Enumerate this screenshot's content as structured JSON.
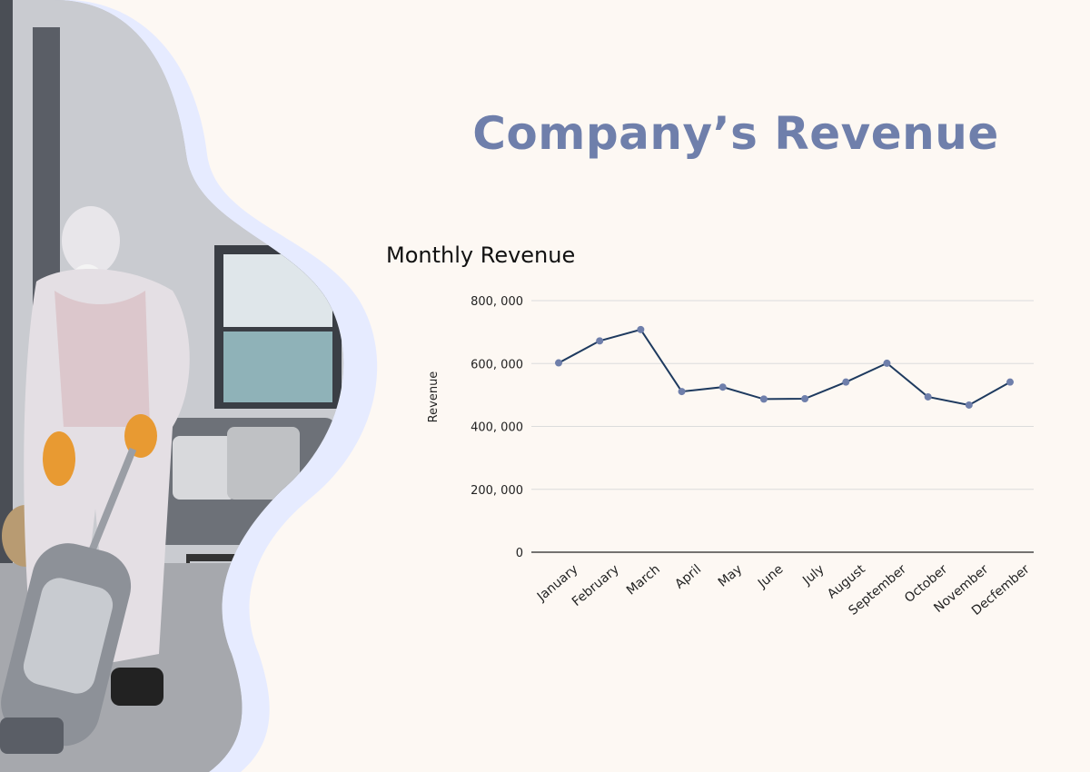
{
  "page": {
    "title": "Company’s Revenue"
  },
  "chart_data": {
    "type": "line",
    "title": "Monthly Revenue",
    "xlabel": "",
    "ylabel": "Revenue",
    "categories": [
      "January",
      "February",
      "March",
      "April",
      "May",
      "June",
      "July",
      "August",
      "September",
      "October",
      "November",
      "Decfember"
    ],
    "series": [
      {
        "values": [
          602000,
          672000,
          708000,
          511000,
          525000,
          487000,
          488000,
          541000,
          601000,
          494000,
          468000,
          541000
        ]
      }
    ],
    "ylim": [
      0,
      800000
    ],
    "yticks": [
      0,
      200000,
      400000,
      600000,
      800000
    ],
    "ytick_labels": [
      "0",
      "200, 000",
      "400, 000",
      "600, 000",
      "800, 000"
    ],
    "grid": true,
    "colors": {
      "line": "#1e3a5f",
      "marker": "#6f7fab",
      "title": "#6f7fab",
      "blob": "#e6ebff"
    }
  }
}
